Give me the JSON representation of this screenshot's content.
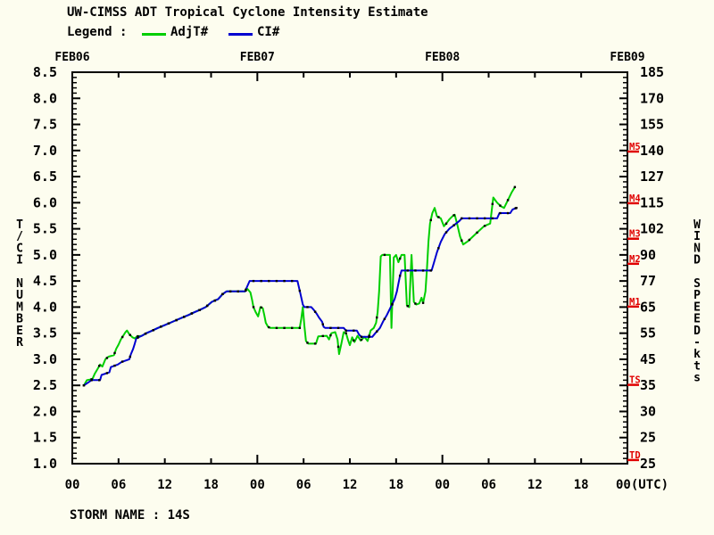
{
  "title": "UW-CIMSS ADT Tropical Cyclone Intensity Estimate",
  "legend": {
    "label": "Legend :",
    "series": [
      {
        "name": "AdjT#",
        "color": "#00CE00"
      },
      {
        "name": "CI#",
        "color": "#0000D0"
      }
    ]
  },
  "footer": {
    "storm_name": "STORM NAME : 14S"
  },
  "chart_data": {
    "type": "line",
    "title": "UW-CIMSS ADT Tropical Cyclone Intensity Estimate",
    "xlabel": "(UTC)",
    "ylabel_left": "T/CI NUMBER",
    "ylabel_right": "WIND SPEED-kts",
    "ylim": [
      1.0,
      8.5
    ],
    "x_axis": {
      "range_hours": [
        0,
        72
      ],
      "tick_every_hours": 6,
      "day_tick_every_hours": 24,
      "top_labels": [
        "FEB06",
        "FEB07",
        "FEB08",
        "FEB09"
      ],
      "top_label_hours": [
        0,
        24,
        48,
        72
      ],
      "bottom_labels": [
        "00",
        "06",
        "12",
        "18",
        "00",
        "06",
        "12",
        "18",
        "00",
        "06",
        "12",
        "18",
        "00(UTC)"
      ],
      "bottom_label_hours": [
        0,
        6,
        12,
        18,
        24,
        30,
        36,
        42,
        48,
        54,
        60,
        66,
        72
      ]
    },
    "y_axis_left": {
      "label": "T/CI NUMBER",
      "min": 1.0,
      "max": 8.5,
      "major_step": 0.5,
      "minor_step": 0.1,
      "tick_labels": [
        "8.5",
        "8.0",
        "7.5",
        "7.0",
        "6.5",
        "6.0",
        "5.5",
        "5.0",
        "4.5",
        "4.0",
        "3.5",
        "3.0",
        "2.5",
        "2.0",
        "1.5",
        "1.0"
      ]
    },
    "y_axis_right": {
      "label": "WIND SPEED-kts",
      "tick_labels": [
        "185",
        "170",
        "155",
        "140",
        "127",
        "115",
        "102",
        "90",
        "77",
        "65",
        "55",
        "45",
        "35",
        "30",
        "25",
        "25"
      ]
    },
    "categories_right": [
      {
        "label": "M5",
        "t": 6.98
      },
      {
        "label": "M4",
        "t": 5.99
      },
      {
        "label": "M3",
        "t": 5.31
      },
      {
        "label": "M2",
        "t": 4.83
      },
      {
        "label": "M1",
        "t": 4.01
      },
      {
        "label": "TS",
        "t": 2.51
      },
      {
        "label": "TD",
        "t": 1.07
      }
    ],
    "colors": {
      "adjt": "#00CE00",
      "ci": "#0000D0",
      "category": "#E00000",
      "frame": "#000000",
      "marker": "#000000",
      "background": "#FDFDEF"
    },
    "grid": false,
    "legend_position": "top-left",
    "series": [
      {
        "name": "AdjT#",
        "color": "#00CE00",
        "points": [
          [
            1.5,
            2.5
          ],
          [
            1.9,
            2.6
          ],
          [
            2.6,
            2.62
          ],
          [
            2.9,
            2.72
          ],
          [
            3.3,
            2.82
          ],
          [
            3.6,
            2.9
          ],
          [
            3.9,
            2.86
          ],
          [
            4.3,
            3.0
          ],
          [
            4.7,
            3.05
          ],
          [
            5.4,
            3.08
          ],
          [
            5.7,
            3.2
          ],
          [
            6.0,
            3.28
          ],
          [
            6.3,
            3.38
          ],
          [
            6.6,
            3.45
          ],
          [
            6.9,
            3.52
          ],
          [
            7.1,
            3.55
          ],
          [
            7.4,
            3.48
          ],
          [
            7.8,
            3.42
          ],
          [
            8.1,
            3.4
          ],
          [
            8.4,
            3.44
          ],
          [
            9.0,
            3.45
          ],
          [
            9.6,
            3.5
          ],
          [
            10.4,
            3.55
          ],
          [
            11.1,
            3.6
          ],
          [
            11.9,
            3.65
          ],
          [
            12.7,
            3.7
          ],
          [
            13.5,
            3.75
          ],
          [
            14.3,
            3.8
          ],
          [
            15.1,
            3.85
          ],
          [
            15.8,
            3.9
          ],
          [
            16.6,
            3.95
          ],
          [
            17.3,
            4.0
          ],
          [
            18.1,
            4.1
          ],
          [
            18.9,
            4.15
          ],
          [
            19.5,
            4.25
          ],
          [
            20.0,
            4.3
          ],
          [
            22.4,
            4.3
          ],
          [
            22.7,
            4.35
          ],
          [
            23.1,
            4.28
          ],
          [
            23.3,
            4.15
          ],
          [
            23.5,
            4.0
          ],
          [
            23.8,
            3.9
          ],
          [
            24.1,
            3.82
          ],
          [
            24.4,
            4.0
          ],
          [
            24.7,
            3.98
          ],
          [
            24.9,
            3.85
          ],
          [
            25.1,
            3.7
          ],
          [
            25.4,
            3.62
          ],
          [
            25.7,
            3.6
          ],
          [
            29.5,
            3.6
          ],
          [
            29.7,
            3.78
          ],
          [
            29.9,
            4.0
          ],
          [
            30.1,
            3.65
          ],
          [
            30.3,
            3.35
          ],
          [
            30.6,
            3.3
          ],
          [
            31.6,
            3.3
          ],
          [
            31.9,
            3.44
          ],
          [
            33.0,
            3.45
          ],
          [
            33.3,
            3.38
          ],
          [
            33.6,
            3.5
          ],
          [
            34.1,
            3.52
          ],
          [
            34.4,
            3.38
          ],
          [
            34.6,
            3.1
          ],
          [
            34.9,
            3.3
          ],
          [
            35.2,
            3.52
          ],
          [
            35.5,
            3.5
          ],
          [
            35.8,
            3.35
          ],
          [
            36.0,
            3.27
          ],
          [
            36.3,
            3.42
          ],
          [
            36.6,
            3.33
          ],
          [
            37.0,
            3.45
          ],
          [
            37.4,
            3.36
          ],
          [
            37.9,
            3.43
          ],
          [
            38.3,
            3.35
          ],
          [
            38.7,
            3.55
          ],
          [
            39.1,
            3.6
          ],
          [
            39.4,
            3.7
          ],
          [
            39.6,
            3.9
          ],
          [
            39.8,
            4.3
          ],
          [
            40.0,
            4.97
          ],
          [
            40.2,
            5.0
          ],
          [
            41.2,
            5.0
          ],
          [
            41.4,
            3.6
          ],
          [
            41.7,
            4.95
          ],
          [
            42.0,
            5.0
          ],
          [
            42.3,
            4.86
          ],
          [
            42.7,
            5.0
          ],
          [
            43.1,
            5.0
          ],
          [
            43.4,
            4.03
          ],
          [
            43.7,
            4.0
          ],
          [
            44.0,
            5.0
          ],
          [
            44.3,
            4.1
          ],
          [
            44.6,
            4.05
          ],
          [
            45.0,
            4.07
          ],
          [
            45.3,
            4.18
          ],
          [
            45.5,
            4.08
          ],
          [
            45.8,
            4.3
          ],
          [
            46.0,
            4.74
          ],
          [
            46.2,
            5.26
          ],
          [
            46.4,
            5.6
          ],
          [
            46.7,
            5.8
          ],
          [
            47.0,
            5.9
          ],
          [
            47.3,
            5.74
          ],
          [
            47.8,
            5.7
          ],
          [
            48.2,
            5.55
          ],
          [
            48.5,
            5.6
          ],
          [
            48.9,
            5.68
          ],
          [
            49.3,
            5.74
          ],
          [
            49.6,
            5.77
          ],
          [
            49.9,
            5.6
          ],
          [
            50.3,
            5.35
          ],
          [
            50.7,
            5.2
          ],
          [
            51.3,
            5.26
          ],
          [
            52.3,
            5.4
          ],
          [
            53.4,
            5.55
          ],
          [
            54.2,
            5.6
          ],
          [
            54.6,
            6.1
          ],
          [
            55.1,
            6.0
          ],
          [
            55.6,
            5.93
          ],
          [
            56.0,
            5.9
          ],
          [
            56.5,
            6.05
          ],
          [
            57.0,
            6.2
          ],
          [
            57.4,
            6.3
          ]
        ]
      },
      {
        "name": "CI#",
        "color": "#0000D0",
        "points": [
          [
            1.5,
            2.5
          ],
          [
            2.0,
            2.55
          ],
          [
            2.5,
            2.6
          ],
          [
            3.6,
            2.6
          ],
          [
            3.8,
            2.7
          ],
          [
            4.8,
            2.75
          ],
          [
            5.0,
            2.85
          ],
          [
            5.9,
            2.9
          ],
          [
            6.4,
            2.95
          ],
          [
            7.4,
            3.0
          ],
          [
            7.6,
            3.1
          ],
          [
            7.9,
            3.2
          ],
          [
            8.1,
            3.3
          ],
          [
            8.3,
            3.4
          ],
          [
            9.0,
            3.45
          ],
          [
            9.6,
            3.5
          ],
          [
            10.4,
            3.55
          ],
          [
            11.1,
            3.6
          ],
          [
            11.9,
            3.65
          ],
          [
            12.7,
            3.7
          ],
          [
            13.5,
            3.75
          ],
          [
            14.3,
            3.8
          ],
          [
            15.1,
            3.85
          ],
          [
            15.8,
            3.9
          ],
          [
            16.6,
            3.95
          ],
          [
            17.3,
            4.0
          ],
          [
            18.1,
            4.1
          ],
          [
            18.9,
            4.15
          ],
          [
            19.5,
            4.25
          ],
          [
            20.0,
            4.3
          ],
          [
            22.4,
            4.3
          ],
          [
            22.7,
            4.4
          ],
          [
            23.0,
            4.5
          ],
          [
            29.2,
            4.5
          ],
          [
            29.6,
            4.25
          ],
          [
            29.9,
            4.05
          ],
          [
            30.1,
            4.0
          ],
          [
            31.0,
            4.0
          ],
          [
            31.3,
            3.95
          ],
          [
            31.7,
            3.87
          ],
          [
            32.0,
            3.8
          ],
          [
            32.4,
            3.72
          ],
          [
            32.6,
            3.62
          ],
          [
            32.8,
            3.6
          ],
          [
            35.2,
            3.6
          ],
          [
            35.5,
            3.55
          ],
          [
            36.9,
            3.55
          ],
          [
            37.2,
            3.47
          ],
          [
            37.5,
            3.43
          ],
          [
            38.9,
            3.43
          ],
          [
            39.3,
            3.5
          ],
          [
            39.9,
            3.6
          ],
          [
            40.3,
            3.72
          ],
          [
            40.8,
            3.85
          ],
          [
            41.3,
            4.0
          ],
          [
            41.8,
            4.15
          ],
          [
            42.1,
            4.3
          ],
          [
            42.3,
            4.45
          ],
          [
            42.5,
            4.6
          ],
          [
            42.7,
            4.7
          ],
          [
            46.6,
            4.7
          ],
          [
            46.9,
            4.85
          ],
          [
            47.3,
            5.05
          ],
          [
            47.8,
            5.25
          ],
          [
            48.3,
            5.4
          ],
          [
            48.9,
            5.5
          ],
          [
            49.6,
            5.58
          ],
          [
            50.2,
            5.65
          ],
          [
            50.5,
            5.7
          ],
          [
            55.1,
            5.7
          ],
          [
            55.4,
            5.8
          ],
          [
            56.8,
            5.8
          ],
          [
            57.1,
            5.87
          ],
          [
            57.6,
            5.9
          ]
        ]
      }
    ]
  }
}
